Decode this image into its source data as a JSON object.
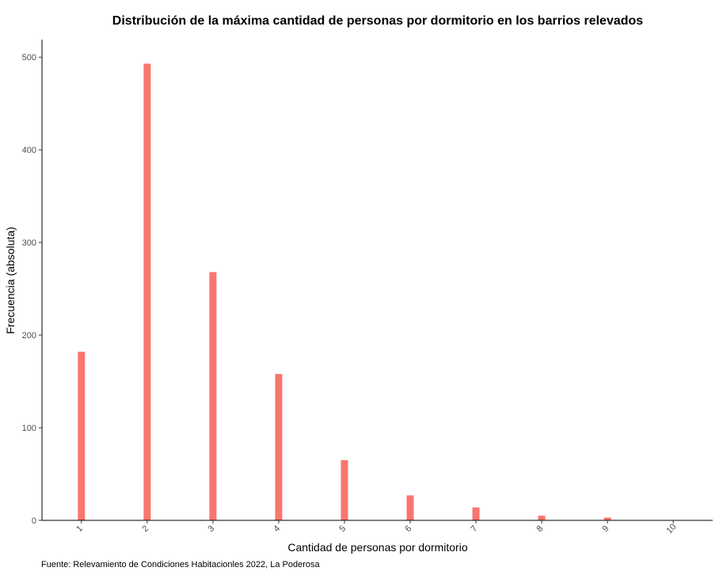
{
  "chart_data": {
    "type": "bar",
    "title": "Distribución de la máxima cantidad de personas por dormitorio en los barrios relevados",
    "xlabel": "Cantidad de personas por dormitorio",
    "ylabel": "Frecuencia (absoluta)",
    "caption": "Fuente: Relevamiento de Condiciones Habitacionles 2022, La Poderosa",
    "categories": [
      "1",
      "2",
      "3",
      "4",
      "5",
      "6",
      "7",
      "8",
      "9",
      "10"
    ],
    "values": [
      182,
      493,
      268,
      158,
      65,
      27,
      14,
      5,
      3,
      0
    ],
    "ylim": [
      0,
      519
    ],
    "yticks": [
      0,
      100,
      200,
      300,
      400,
      500
    ],
    "grid": false,
    "bar_color": "#F8766D"
  }
}
